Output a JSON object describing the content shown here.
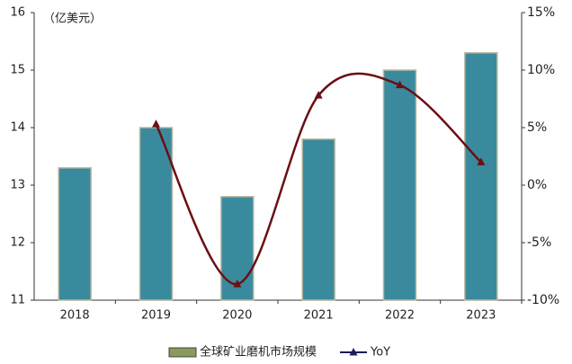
{
  "chart_data": {
    "type": "bar",
    "y_label": "（亿美元）",
    "categories": [
      "2018",
      "2019",
      "2020",
      "2021",
      "2022",
      "2023"
    ],
    "series": [
      {
        "name": "全球矿业磨机市场规模",
        "type": "bar",
        "color": "#3a8a9e",
        "values": [
          13.3,
          14.0,
          12.8,
          13.8,
          15.0,
          15.3
        ]
      },
      {
        "name": "YoY",
        "type": "line",
        "axis": "y2",
        "color": "#6b0f12",
        "values": [
          null,
          5.3,
          -8.6,
          7.8,
          8.7,
          2.0
        ]
      }
    ],
    "ylim": [
      11,
      16
    ],
    "yticks": [
      11,
      12,
      13,
      14,
      15,
      16
    ],
    "y2lim": [
      -10,
      15
    ],
    "y2ticks": [
      {
        "value": -10,
        "label": "-10%"
      },
      {
        "value": -5,
        "label": "-5%"
      },
      {
        "value": 0,
        "label": "0%"
      },
      {
        "value": 5,
        "label": "5%"
      },
      {
        "value": 10,
        "label": "10%"
      },
      {
        "value": 15,
        "label": "15%"
      }
    ],
    "legend": "bottom"
  }
}
